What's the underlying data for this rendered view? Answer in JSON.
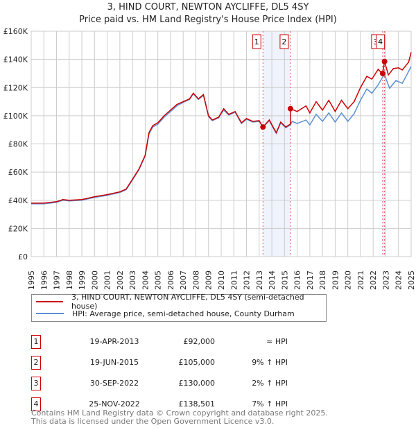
{
  "chart_data": {
    "type": "line",
    "title": "3, HIND COURT, NEWTON AYCLIFFE, DL5 4SY",
    "subtitle": "Price paid vs. HM Land Registry's House Price Index (HPI)",
    "ylim": [
      0,
      160000
    ],
    "xlim": [
      1995,
      2025
    ],
    "yticks": [
      {
        "v": 0,
        "label": "£0"
      },
      {
        "v": 20000,
        "label": "£20K"
      },
      {
        "v": 40000,
        "label": "£40K"
      },
      {
        "v": 60000,
        "label": "£60K"
      },
      {
        "v": 80000,
        "label": "£80K"
      },
      {
        "v": 100000,
        "label": "£100K"
      },
      {
        "v": 120000,
        "label": "£120K"
      },
      {
        "v": 140000,
        "label": "£140K"
      },
      {
        "v": 160000,
        "label": "£160K"
      }
    ],
    "xticks": [
      "1995",
      "1996",
      "1997",
      "1998",
      "1999",
      "2000",
      "2001",
      "2002",
      "2003",
      "2004",
      "2005",
      "2006",
      "2007",
      "2008",
      "2009",
      "2010",
      "2011",
      "2012",
      "2013",
      "2014",
      "2015",
      "2016",
      "2017",
      "2018",
      "2019",
      "2020",
      "2021",
      "2022",
      "2023",
      "2024",
      "2025"
    ],
    "grid": true,
    "series": [
      {
        "name": "3, HIND COURT, NEWTON AYCLIFFE, DL5 4SY (semi-detached house)",
        "color": "#cc0000",
        "points": [
          [
            1995,
            38000
          ],
          [
            1996,
            38000
          ],
          [
            1997,
            39000
          ],
          [
            1997.5,
            40500
          ],
          [
            1998,
            40000
          ],
          [
            1999,
            40500
          ],
          [
            2000,
            42500
          ],
          [
            2001,
            44000
          ],
          [
            2002,
            46000
          ],
          [
            2002.5,
            48000
          ],
          [
            2003,
            55000
          ],
          [
            2003.5,
            62000
          ],
          [
            2004,
            72000
          ],
          [
            2004.3,
            88000
          ],
          [
            2004.6,
            93000
          ],
          [
            2005,
            95000
          ],
          [
            2005.5,
            100000
          ],
          [
            2006,
            104000
          ],
          [
            2006.5,
            108000
          ],
          [
            2007,
            110000
          ],
          [
            2007.5,
            112000
          ],
          [
            2007.8,
            116000
          ],
          [
            2008.2,
            112000
          ],
          [
            2008.6,
            115000
          ],
          [
            2009,
            100000
          ],
          [
            2009.3,
            97000
          ],
          [
            2009.8,
            99000
          ],
          [
            2010.2,
            105000
          ],
          [
            2010.6,
            101000
          ],
          [
            2011.1,
            103000
          ],
          [
            2011.6,
            95000
          ],
          [
            2012,
            98000
          ],
          [
            2012.5,
            96000
          ],
          [
            2013,
            96500
          ],
          [
            2013.3,
            92000
          ],
          [
            2013.8,
            97000
          ],
          [
            2014.1,
            92000
          ],
          [
            2014.35,
            88000
          ],
          [
            2014.7,
            95500
          ],
          [
            2015.1,
            92000
          ],
          [
            2015.46,
            94000
          ],
          [
            2015.47,
            105000
          ],
          [
            2016,
            103000
          ],
          [
            2016.7,
            107000
          ],
          [
            2017,
            102000
          ],
          [
            2017.5,
            110000
          ],
          [
            2018,
            104000
          ],
          [
            2018.5,
            111000
          ],
          [
            2019,
            103000
          ],
          [
            2019.5,
            111000
          ],
          [
            2020,
            105000
          ],
          [
            2020.5,
            110000
          ],
          [
            2021,
            120000
          ],
          [
            2021.5,
            128000
          ],
          [
            2021.9,
            126000
          ],
          [
            2022.4,
            133000
          ],
          [
            2022.6,
            131000
          ],
          [
            2022.75,
            130000
          ],
          [
            2022.9,
            138501
          ],
          [
            2023.2,
            129000
          ],
          [
            2023.6,
            133500
          ],
          [
            2024,
            134000
          ],
          [
            2024.3,
            132500
          ],
          [
            2024.8,
            138000
          ],
          [
            2025,
            145000
          ]
        ]
      },
      {
        "name": "HPI: Average price, semi-detached house, County Durham",
        "color": "#5b8fd4",
        "points": [
          [
            1995,
            37500
          ],
          [
            1996,
            37500
          ],
          [
            1997,
            38500
          ],
          [
            1997.5,
            40000
          ],
          [
            1998,
            39500
          ],
          [
            1999,
            40000
          ],
          [
            2000,
            42000
          ],
          [
            2001,
            43500
          ],
          [
            2002,
            45500
          ],
          [
            2002.5,
            47500
          ],
          [
            2003,
            54500
          ],
          [
            2003.5,
            61500
          ],
          [
            2004,
            71500
          ],
          [
            2004.3,
            87000
          ],
          [
            2004.6,
            92000
          ],
          [
            2005,
            94000
          ],
          [
            2005.5,
            99000
          ],
          [
            2006,
            103000
          ],
          [
            2006.5,
            107000
          ],
          [
            2007,
            109500
          ],
          [
            2007.5,
            111500
          ],
          [
            2007.8,
            115500
          ],
          [
            2008.2,
            111500
          ],
          [
            2008.6,
            114500
          ],
          [
            2009,
            99500
          ],
          [
            2009.3,
            96500
          ],
          [
            2009.8,
            98500
          ],
          [
            2010.2,
            104000
          ],
          [
            2010.6,
            100500
          ],
          [
            2011.1,
            102500
          ],
          [
            2011.6,
            94500
          ],
          [
            2012,
            97500
          ],
          [
            2012.5,
            95500
          ],
          [
            2013,
            96000
          ],
          [
            2013.3,
            92000
          ],
          [
            2013.8,
            96500
          ],
          [
            2014.1,
            91500
          ],
          [
            2014.35,
            87500
          ],
          [
            2014.7,
            95000
          ],
          [
            2015.1,
            91500
          ],
          [
            2015.46,
            93500
          ],
          [
            2015.6,
            96000
          ],
          [
            2016,
            94500
          ],
          [
            2016.7,
            97000
          ],
          [
            2017,
            93500
          ],
          [
            2017.5,
            101000
          ],
          [
            2018,
            96000
          ],
          [
            2018.5,
            102000
          ],
          [
            2019,
            95500
          ],
          [
            2019.5,
            102000
          ],
          [
            2020,
            96000
          ],
          [
            2020.5,
            101500
          ],
          [
            2021,
            111000
          ],
          [
            2021.5,
            119000
          ],
          [
            2021.9,
            116000
          ],
          [
            2022.4,
            122000
          ],
          [
            2022.75,
            127500
          ],
          [
            2022.9,
            129000
          ],
          [
            2023.3,
            119500
          ],
          [
            2023.8,
            125000
          ],
          [
            2024.3,
            123000
          ],
          [
            2024.6,
            128000
          ],
          [
            2025,
            135000
          ]
        ]
      }
    ],
    "sales": [
      {
        "n": "1",
        "x": 2013.3,
        "y": 92000,
        "date": "19-APR-2013",
        "price": "£92,000",
        "hpi": "≈ HPI"
      },
      {
        "n": "2",
        "x": 2015.47,
        "y": 105000,
        "date": "19-JUN-2015",
        "price": "£105,000",
        "hpi": "9% ↑ HPI"
      },
      {
        "n": "3",
        "x": 2022.75,
        "y": 130000,
        "date": "30-SEP-2022",
        "price": "£130,000",
        "hpi": "2% ↑ HPI"
      },
      {
        "n": "4",
        "x": 2022.9,
        "y": 138501,
        "date": "25-NOV-2022",
        "price": "£138,501",
        "hpi": "7% ↑ HPI"
      }
    ],
    "shaded": [
      [
        2013.3,
        2015.47
      ],
      [
        2022.75,
        2022.9
      ]
    ]
  },
  "footer": {
    "line1": "Contains HM Land Registry data © Crown copyright and database right 2025.",
    "line2": "This data is licensed under the Open Government Licence v3.0."
  }
}
